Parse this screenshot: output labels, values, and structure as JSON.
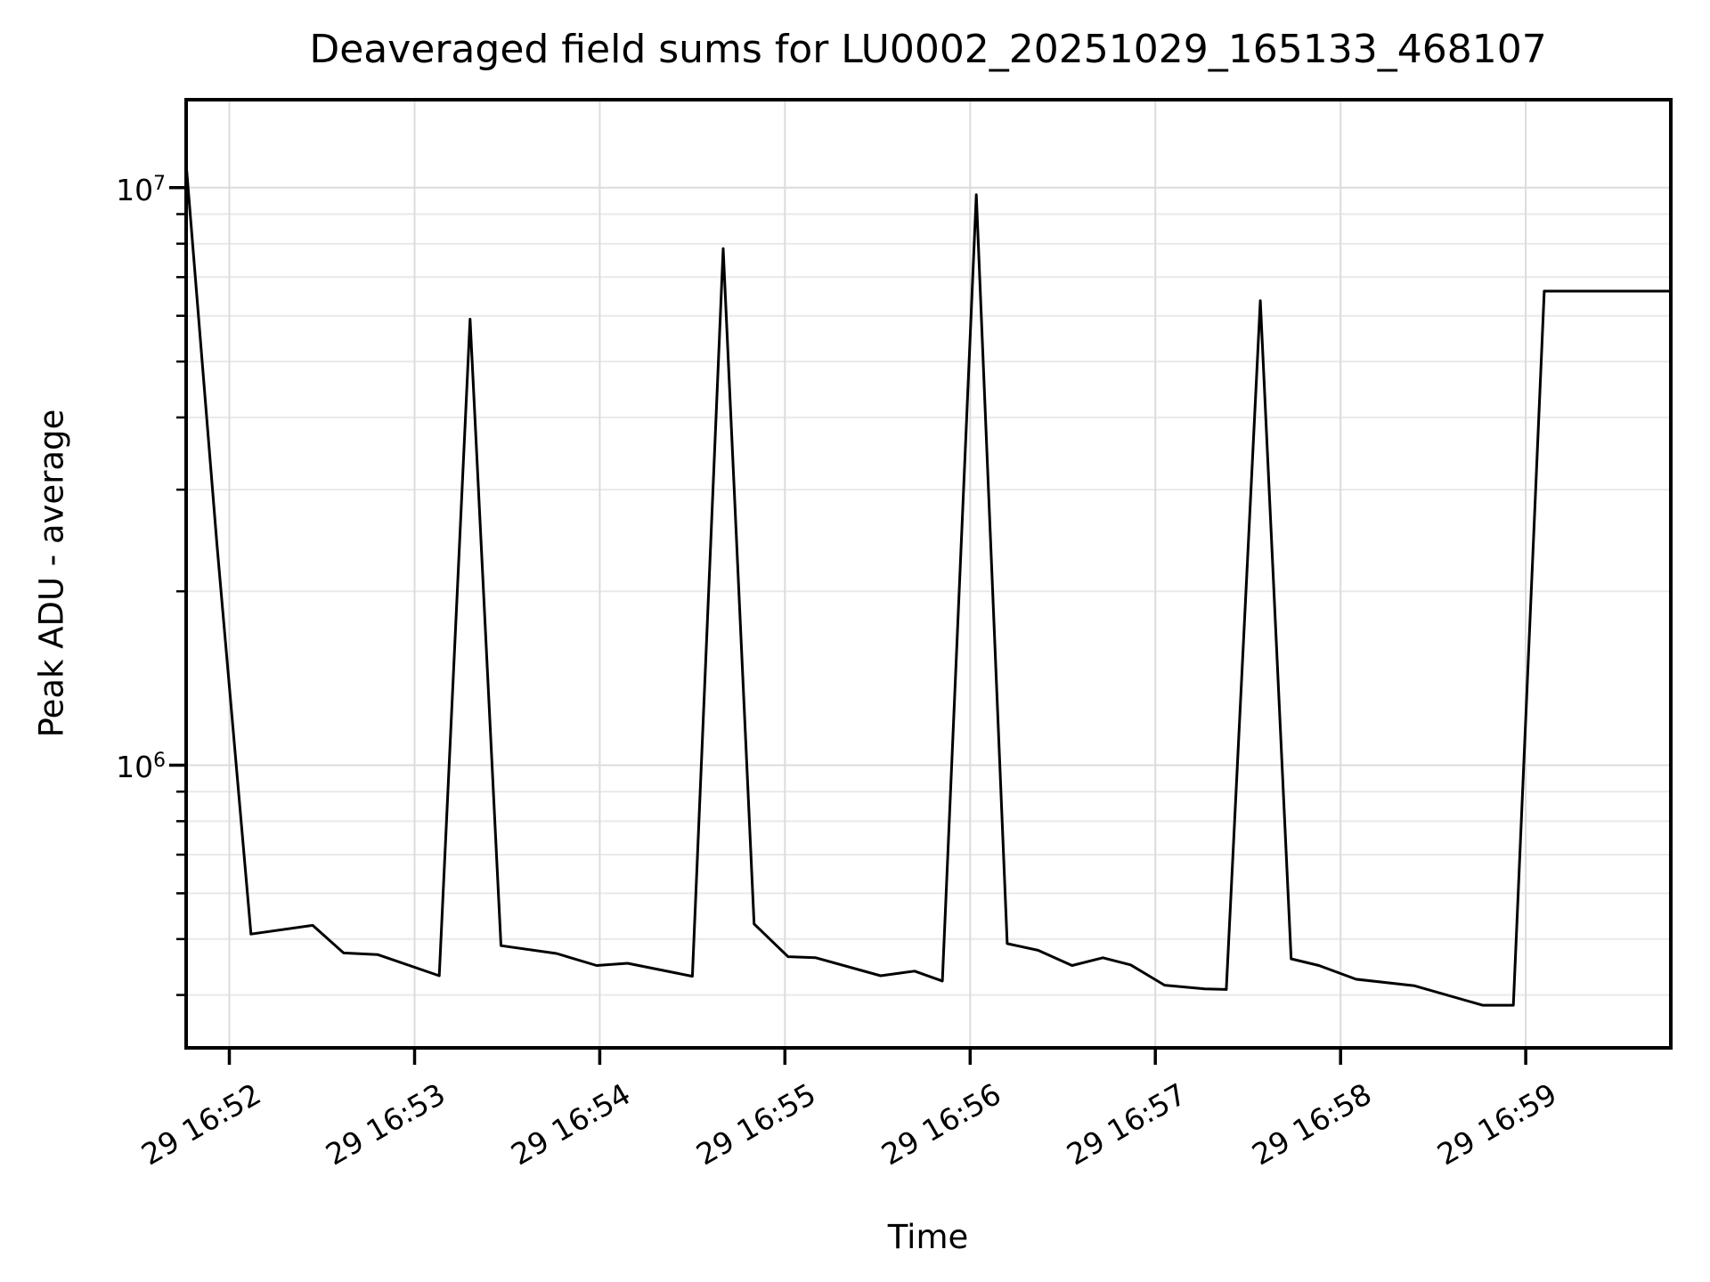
{
  "chart_data": {
    "type": "line",
    "title": "Deaveraged field sums for LU0002_20251029_165133_468107",
    "xlabel": "Time",
    "ylabel": "Peak ADU - average",
    "grid": {
      "show": true,
      "major_color": "#dcdcdc",
      "minor_color": "#e9e9e9"
    },
    "line": {
      "color": "#000000",
      "width": 3
    },
    "x_axis": {
      "tick_labels": [
        "29 16:52",
        "29 16:53",
        "29 16:54",
        "29 16:55",
        "29 16:56",
        "29 16:57",
        "29 16:58",
        "29 16:59"
      ],
      "tick_seconds": [
        0,
        60,
        120,
        180,
        240,
        300,
        360,
        420
      ],
      "lim_seconds": [
        -14,
        467
      ]
    },
    "y_axis": {
      "scale": "log",
      "lim": [
        324000,
        14200000
      ],
      "major_ticks": [
        1000000,
        10000000
      ],
      "major_tick_labels": [
        "10^6",
        "10^7"
      ],
      "minor_ticks": [
        400000,
        500000,
        600000,
        700000,
        800000,
        900000,
        2000000,
        3000000,
        4000000,
        5000000,
        6000000,
        7000000,
        8000000,
        9000000
      ]
    },
    "series": [
      {
        "name": "Peak ADU - average",
        "points": [
          {
            "time": "29 16:51:46",
            "s": -14,
            "v": 11000000
          },
          {
            "time": "29 16:51:56",
            "s": -4,
            "v": 2400000
          },
          {
            "time": "29 16:52:07",
            "s": 7,
            "v": 510000
          },
          {
            "time": "29 16:52:27",
            "s": 27,
            "v": 528000
          },
          {
            "time": "29 16:52:37",
            "s": 37,
            "v": 473000
          },
          {
            "time": "29 16:52:48",
            "s": 48,
            "v": 470000
          },
          {
            "time": "29 16:53:08",
            "s": 68,
            "v": 432000
          },
          {
            "time": "29 16:53:18",
            "s": 78,
            "v": 5920000
          },
          {
            "time": "29 16:53:28",
            "s": 88,
            "v": 487000
          },
          {
            "time": "29 16:53:46",
            "s": 106,
            "v": 472000
          },
          {
            "time": "29 16:53:59",
            "s": 119,
            "v": 450000
          },
          {
            "time": "29 16:54:09",
            "s": 129,
            "v": 454000
          },
          {
            "time": "29 16:54:30",
            "s": 150,
            "v": 431000
          },
          {
            "time": "29 16:54:40",
            "s": 160,
            "v": 7840000
          },
          {
            "time": "29 16:54:50",
            "s": 170,
            "v": 531000
          },
          {
            "time": "29 16:55:01",
            "s": 181,
            "v": 466000
          },
          {
            "time": "29 16:55:10",
            "s": 190,
            "v": 464000
          },
          {
            "time": "29 16:55:31",
            "s": 211,
            "v": 432000
          },
          {
            "time": "29 16:55:42",
            "s": 222,
            "v": 440000
          },
          {
            "time": "29 16:55:51",
            "s": 231,
            "v": 423000
          },
          {
            "time": "29 16:56:02",
            "s": 242,
            "v": 9720000
          },
          {
            "time": "29 16:56:12",
            "s": 252,
            "v": 491000
          },
          {
            "time": "29 16:56:22",
            "s": 262,
            "v": 478000
          },
          {
            "time": "29 16:56:33",
            "s": 273,
            "v": 450000
          },
          {
            "time": "29 16:56:43",
            "s": 283,
            "v": 464000
          },
          {
            "time": "29 16:56:52",
            "s": 292,
            "v": 451000
          },
          {
            "time": "29 16:57:03",
            "s": 303,
            "v": 416000
          },
          {
            "time": "29 16:57:16",
            "s": 316,
            "v": 410000
          },
          {
            "time": "29 16:57:23",
            "s": 323,
            "v": 409000
          },
          {
            "time": "29 16:57:34",
            "s": 334,
            "v": 6370000
          },
          {
            "time": "29 16:57:44",
            "s": 344,
            "v": 462000
          },
          {
            "time": "29 16:57:53",
            "s": 353,
            "v": 450000
          },
          {
            "time": "29 16:58:05",
            "s": 365,
            "v": 426000
          },
          {
            "time": "29 16:58:24",
            "s": 384,
            "v": 415000
          },
          {
            "time": "29 16:58:46",
            "s": 406,
            "v": 384000
          },
          {
            "time": "29 16:58:56",
            "s": 416,
            "v": 384000
          },
          {
            "time": "29 16:59:06",
            "s": 426,
            "v": 6620000
          },
          {
            "time": "29 16:59:47",
            "s": 467,
            "v": 6620000
          }
        ]
      }
    ]
  }
}
